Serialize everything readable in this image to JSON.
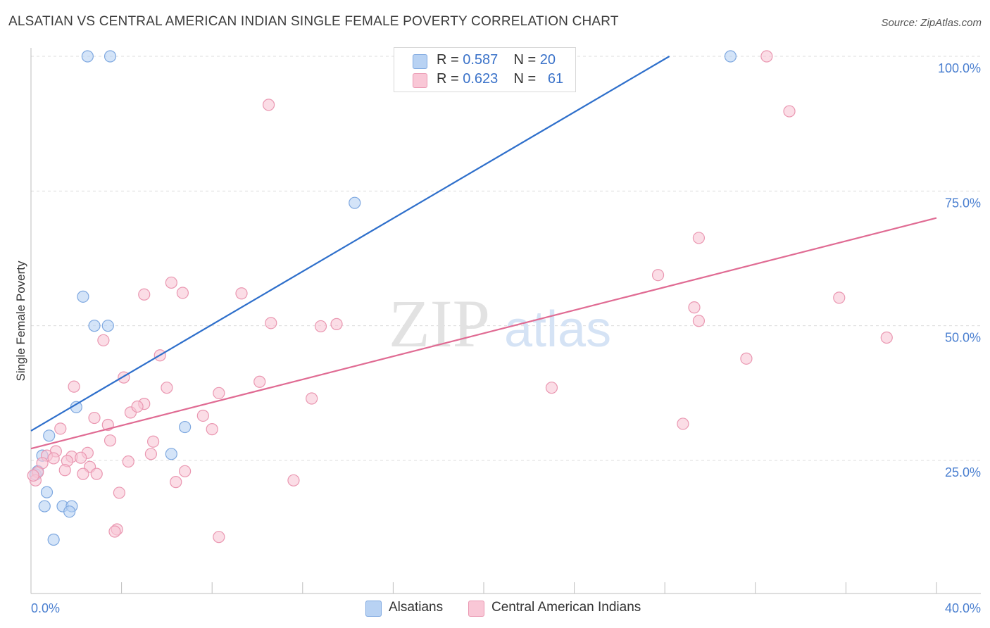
{
  "title": "ALSATIAN VS CENTRAL AMERICAN INDIAN SINGLE FEMALE POVERTY CORRELATION CHART",
  "source": "Source: ZipAtlas.com",
  "watermark": {
    "zip": "ZIP",
    "atlas": "atlas"
  },
  "colors": {
    "blue_fill": "#b8d2f3",
    "blue_stroke": "#7ea8e0",
    "blue_line": "#2e6fcb",
    "pink_fill": "#f9c7d6",
    "pink_stroke": "#ea97b1",
    "pink_line": "#e06b93",
    "tick_label": "#4a7fd0"
  },
  "legend": {
    "rows": [
      {
        "r_label": "R = ",
        "r_value": "0.587",
        "n_label": "N = ",
        "n_value": "20"
      },
      {
        "r_label": "R = ",
        "r_value": "0.623",
        "n_label": "N = ",
        "n_value": "61"
      }
    ]
  },
  "bottom_legend": [
    "Alsatians",
    "Central American Indians"
  ],
  "chart_data": {
    "type": "scatter",
    "xlabel": "",
    "ylabel": "Single Female Poverty",
    "xlim": [
      0,
      40
    ],
    "ylim": [
      0,
      102
    ],
    "x_tick_labels": [
      {
        "value": 0,
        "label": "0.0%"
      },
      {
        "value": 40,
        "label": "40.0%"
      }
    ],
    "y_tick_labels": [
      {
        "value": 25,
        "label": "25.0%"
      },
      {
        "value": 50,
        "label": "50.0%"
      },
      {
        "value": 75,
        "label": "75.0%"
      },
      {
        "value": 100,
        "label": "100.0%"
      }
    ],
    "grid": true,
    "legend_position": "top-center",
    "series": [
      {
        "name": "Alsatians",
        "color": "#7ea8e0",
        "trend": {
          "x": [
            0,
            28.2
          ],
          "y": [
            30.5,
            100
          ]
        },
        "points": [
          [
            2.5,
            100
          ],
          [
            3.5,
            100
          ],
          [
            30.9,
            100
          ],
          [
            14.3,
            72.8
          ],
          [
            2.3,
            55.4
          ],
          [
            2.8,
            50
          ],
          [
            3.4,
            50
          ],
          [
            2.0,
            34.9
          ],
          [
            0.8,
            29.6
          ],
          [
            6.8,
            31.2
          ],
          [
            6.2,
            26.2
          ],
          [
            0.5,
            25.9
          ],
          [
            0.2,
            22.4
          ],
          [
            0.7,
            19.1
          ],
          [
            0.6,
            16.5
          ],
          [
            1.4,
            16.5
          ],
          [
            1.8,
            16.5
          ],
          [
            1.7,
            15.5
          ],
          [
            1.0,
            10.3
          ],
          [
            0.3,
            23.0
          ]
        ]
      },
      {
        "name": "Central American Indians",
        "color": "#ea97b1",
        "trend": {
          "x": [
            0,
            40
          ],
          "y": [
            27.2,
            70
          ]
        },
        "points": [
          [
            32.5,
            100
          ],
          [
            10.5,
            91
          ],
          [
            33.5,
            89.8
          ],
          [
            29.5,
            66.3
          ],
          [
            27.7,
            59.4
          ],
          [
            35.7,
            55.2
          ],
          [
            37.8,
            47.8
          ],
          [
            29.3,
            53.4
          ],
          [
            29.5,
            50.9
          ],
          [
            31.6,
            43.9
          ],
          [
            6.2,
            58.0
          ],
          [
            6.7,
            56.1
          ],
          [
            5.0,
            55.8
          ],
          [
            9.3,
            56.0
          ],
          [
            10.6,
            50.5
          ],
          [
            12.8,
            49.9
          ],
          [
            13.5,
            50.3
          ],
          [
            3.2,
            47.3
          ],
          [
            5.7,
            44.5
          ],
          [
            4.1,
            40.4
          ],
          [
            1.9,
            38.7
          ],
          [
            6.0,
            38.5
          ],
          [
            8.3,
            37.5
          ],
          [
            10.1,
            39.6
          ],
          [
            12.4,
            36.5
          ],
          [
            23.0,
            38.5
          ],
          [
            28.8,
            31.8
          ],
          [
            5.0,
            35.5
          ],
          [
            4.4,
            33.9
          ],
          [
            4.7,
            35.0
          ],
          [
            7.6,
            33.3
          ],
          [
            2.8,
            32.9
          ],
          [
            3.4,
            31.6
          ],
          [
            8.0,
            30.8
          ],
          [
            1.3,
            30.9
          ],
          [
            3.5,
            28.7
          ],
          [
            5.4,
            28.5
          ],
          [
            1.1,
            26.7
          ],
          [
            2.5,
            26.4
          ],
          [
            5.3,
            26.2
          ],
          [
            0.7,
            25.9
          ],
          [
            1.0,
            25.4
          ],
          [
            1.8,
            25.7
          ],
          [
            2.2,
            25.5
          ],
          [
            1.6,
            24.9
          ],
          [
            4.3,
            24.8
          ],
          [
            0.5,
            24.5
          ],
          [
            2.6,
            23.8
          ],
          [
            1.5,
            23.2
          ],
          [
            2.3,
            22.5
          ],
          [
            2.9,
            22.5
          ],
          [
            6.8,
            23.0
          ],
          [
            0.3,
            22.8
          ],
          [
            0.2,
            21.3
          ],
          [
            6.4,
            21.0
          ],
          [
            11.6,
            21.3
          ],
          [
            3.9,
            19.0
          ],
          [
            3.8,
            12.2
          ],
          [
            3.7,
            11.8
          ],
          [
            8.3,
            10.8
          ],
          [
            0.1,
            22.2
          ]
        ]
      }
    ]
  }
}
